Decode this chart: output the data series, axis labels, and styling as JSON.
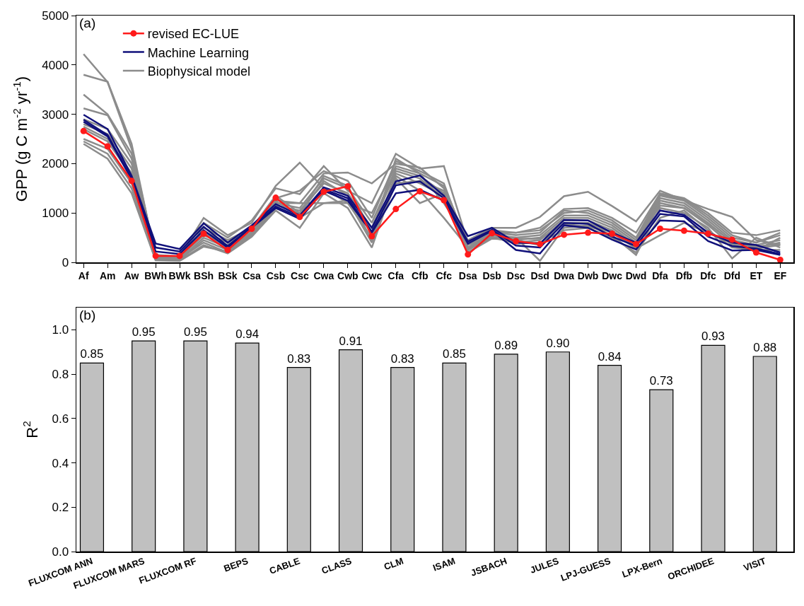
{
  "chart_data": [
    {
      "type": "line",
      "annotations": [
        "(a)"
      ],
      "ylabel": "GPP (g C m$^{-2}$ yr$^{-1}$)",
      "categories": [
        "Af",
        "Am",
        "Aw",
        "BWh",
        "BWk",
        "BSh",
        "BSk",
        "Csa",
        "Csb",
        "Csc",
        "Cwa",
        "Cwb",
        "Cwc",
        "Cfa",
        "Cfb",
        "Cfc",
        "Dsa",
        "Dsb",
        "Dsc",
        "Dsd",
        "Dwa",
        "Dwb",
        "Dwc",
        "Dwd",
        "Dfa",
        "Dfb",
        "Dfc",
        "Dfd",
        "ET",
        "EF"
      ],
      "ylim": [
        0,
        5000
      ],
      "yticks": [
        0,
        1000,
        2000,
        3000,
        4000,
        5000
      ],
      "grid": false,
      "legend": "top left",
      "line_style": "solid",
      "series": [
        {
          "name": "revised EC-LUE",
          "color": "#ff1a1a",
          "marker": "circle",
          "values": [
            2660,
            2350,
            1650,
            130,
            130,
            580,
            250,
            680,
            1310,
            920,
            1430,
            1540,
            530,
            1080,
            1440,
            1260,
            160,
            590,
            430,
            370,
            560,
            600,
            580,
            370,
            680,
            640,
            580,
            460,
            200,
            50
          ]
        },
        {
          "name": "Machine Learning",
          "color": "#10107a",
          "marker": "none",
          "values": [
            2990,
            2700,
            1750,
            380,
            270,
            790,
            400,
            750,
            1180,
            950,
            1520,
            1350,
            700,
            1640,
            1760,
            1350,
            530,
            700,
            400,
            380,
            860,
            850,
            600,
            400,
            1050,
            960,
            600,
            400,
            350,
            200
          ]
        },
        {
          "color": "#10107a",
          "marker": "none",
          "values": [
            2890,
            2580,
            1700,
            300,
            220,
            720,
            330,
            720,
            1130,
            920,
            1480,
            1300,
            620,
            1560,
            1640,
            1300,
            420,
            660,
            340,
            300,
            800,
            780,
            520,
            330,
            980,
            930,
            520,
            330,
            280,
            170
          ]
        },
        {
          "color": "#10107a",
          "marker": "none",
          "values": [
            2850,
            2550,
            1680,
            220,
            170,
            650,
            300,
            700,
            1100,
            880,
            1450,
            1250,
            600,
            1400,
            1470,
            1250,
            380,
            640,
            250,
            180,
            750,
            700,
            460,
            260,
            850,
            830,
            430,
            240,
            250,
            150
          ]
        },
        {
          "name": "Biophysical model",
          "color": "#8c8c8c",
          "marker": "none",
          "values": [
            4220,
            3650,
            2300,
            150,
            120,
            900,
            550,
            800,
            1550,
            2020,
            1500,
            1200,
            1000,
            1950,
            1800,
            1200,
            450,
            700,
            700,
            920,
            1340,
            1430,
            1140,
            830,
            1450,
            1260,
            1080,
            920,
            450,
            350
          ]
        },
        {
          "color": "#8c8c8c",
          "marker": "none",
          "values": [
            3800,
            3660,
            2400,
            100,
            100,
            800,
            500,
            850,
            1500,
            1380,
            1950,
            1450,
            1200,
            2200,
            1900,
            1950,
            400,
            650,
            600,
            700,
            1080,
            1100,
            900,
            600,
            1400,
            1300,
            1000,
            600,
            550,
            650
          ]
        },
        {
          "color": "#8c8c8c",
          "marker": "none",
          "values": [
            3400,
            3000,
            2200,
            80,
            60,
            700,
            450,
            700,
            1300,
            1450,
            1850,
            1650,
            900,
            2050,
            1850,
            1600,
            300,
            600,
            550,
            600,
            1050,
            1000,
            800,
            450,
            1350,
            1250,
            900,
            500,
            400,
            550
          ]
        },
        {
          "color": "#8c8c8c",
          "marker": "none",
          "values": [
            3120,
            2980,
            2100,
            100,
            80,
            620,
            400,
            650,
            1250,
            1200,
            1800,
            1820,
            1600,
            2000,
            1920,
            1500,
            350,
            560,
            500,
            550,
            950,
            950,
            750,
            400,
            1300,
            1200,
            850,
            450,
            350,
            450
          ]
        },
        {
          "color": "#8c8c8c",
          "marker": "none",
          "values": [
            2800,
            2600,
            1900,
            60,
            60,
            500,
            300,
            600,
            1200,
            1100,
            1700,
            1500,
            800,
            1900,
            1750,
            1400,
            250,
            550,
            450,
            500,
            900,
            900,
            700,
            350,
            1250,
            1150,
            800,
            400,
            300,
            400
          ]
        },
        {
          "color": "#8c8c8c",
          "marker": "none",
          "values": [
            2750,
            2500,
            1800,
            50,
            50,
            450,
            250,
            580,
            1150,
            1050,
            1600,
            1400,
            700,
            1850,
            1700,
            1300,
            200,
            500,
            400,
            450,
            850,
            850,
            650,
            300,
            1200,
            1100,
            750,
            350,
            280,
            350
          ]
        },
        {
          "color": "#8c8c8c",
          "marker": "none",
          "values": [
            2500,
            2300,
            1600,
            80,
            80,
            400,
            200,
            550,
            1100,
            900,
            1200,
            1200,
            500,
            1750,
            1450,
            900,
            300,
            500,
            500,
            30,
            700,
            750,
            550,
            150,
            1100,
            1000,
            700,
            80,
            500,
            300
          ]
        },
        {
          "color": "#8c8c8c",
          "marker": "none",
          "values": [
            2450,
            2200,
            1500,
            50,
            40,
            350,
            180,
            520,
            1050,
            700,
            1400,
            1100,
            300,
            1700,
            1200,
            1400,
            250,
            520,
            380,
            400,
            650,
            700,
            500,
            200,
            900,
            1050,
            650,
            300,
            250,
            250
          ]
        },
        {
          "color": "#8c8c8c",
          "marker": "none",
          "values": [
            2400,
            2100,
            1400,
            40,
            30,
            320,
            220,
            600,
            1200,
            1200,
            1200,
            1250,
            400,
            1600,
            1650,
            1450,
            200,
            480,
            450,
            350,
            800,
            800,
            600,
            280,
            550,
            800,
            600,
            380,
            240,
            500
          ]
        },
        {
          "color": "#8c8c8c",
          "marker": "none",
          "values": [
            2900,
            2700,
            2000,
            120,
            100,
            550,
            350,
            700,
            1350,
            1000,
            1750,
            1550,
            600,
            2100,
            1800,
            1550,
            380,
            600,
            600,
            650,
            1000,
            1050,
            850,
            500,
            1380,
            1280,
            950,
            550,
            400,
            600
          ]
        },
        {
          "color": "#8c8c8c",
          "marker": "none",
          "values": [
            2700,
            2450,
            1750,
            90,
            70,
            600,
            280,
            620,
            1230,
            980,
            1650,
            1350,
            450,
            1800,
            1600,
            1350,
            280,
            580,
            480,
            480,
            780,
            720,
            620,
            380,
            1150,
            1100,
            780,
            420,
            320,
            380
          ]
        }
      ]
    },
    {
      "type": "bar",
      "annotations": [
        "(b)"
      ],
      "ylabel": "R$^{2}$",
      "categories": [
        "FLUXCOM ANN",
        "FLUXCOM MARS",
        "FLUXCOM RF",
        "BEPS",
        "CABLE",
        "CLASS",
        "CLM",
        "ISAM",
        "JSBACH",
        "JULES",
        "LPJ-GUESS",
        "LPX-Bern",
        "ORCHIDEE",
        "VISIT"
      ],
      "values": [
        0.85,
        0.95,
        0.95,
        0.94,
        0.83,
        0.91,
        0.83,
        0.85,
        0.89,
        0.9,
        0.84,
        0.73,
        0.93,
        0.88
      ],
      "value_labels": [
        "0.85",
        "0.95",
        "0.95",
        "0.94",
        "0.83",
        "0.91",
        "0.83",
        "0.85",
        "0.89",
        "0.90",
        "0.84",
        "0.73",
        "0.93",
        "0.88"
      ],
      "color": "#c0c0c0",
      "ylim": [
        0,
        1.1
      ],
      "yticks": [
        {
          "value": 0,
          "label": "0.0"
        },
        {
          "value": 0.2,
          "label": "0.2"
        },
        {
          "value": 0.4,
          "label": "0.4"
        },
        {
          "value": 0.6,
          "label": "0.6"
        },
        {
          "value": 0.8,
          "label": "0.8"
        },
        {
          "value": 1,
          "label": "1.0"
        }
      ],
      "grid": false,
      "legend": false
    }
  ]
}
